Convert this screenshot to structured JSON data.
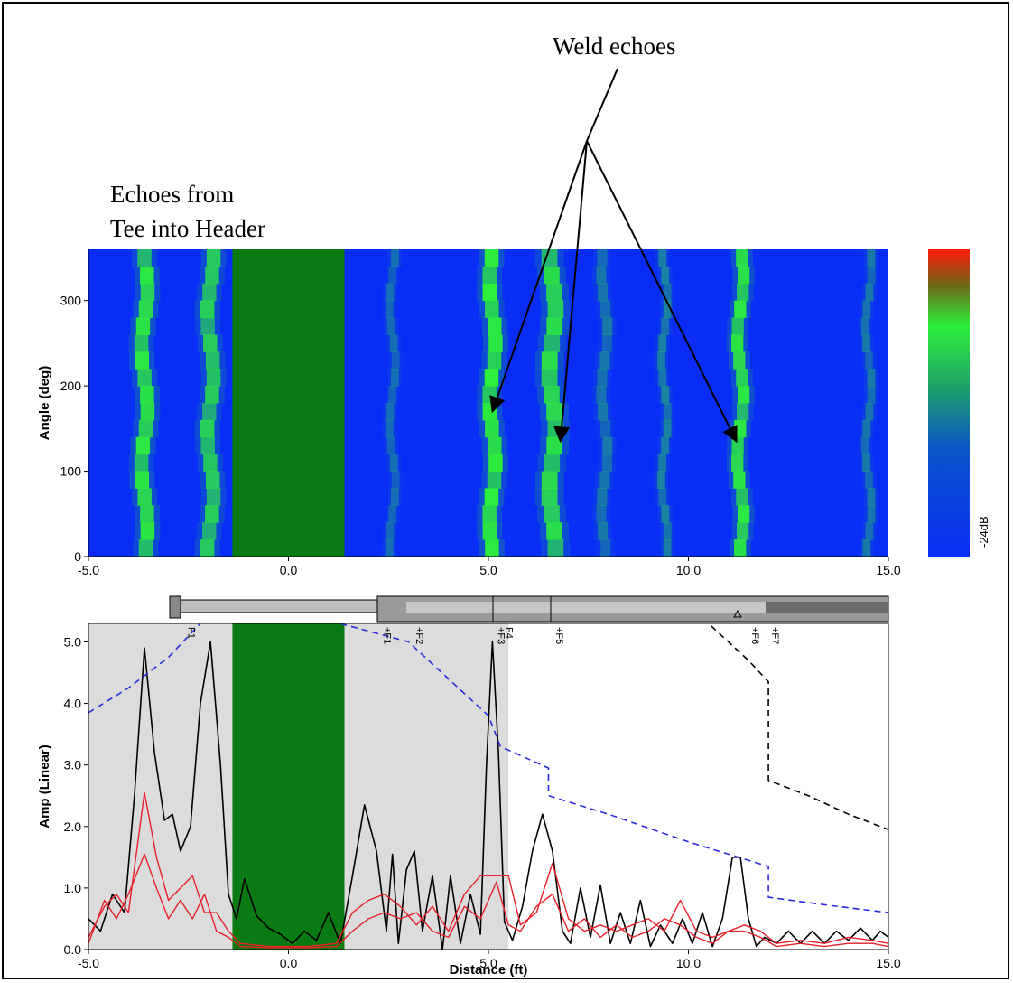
{
  "annotations": {
    "weld_echoes": "Weld echoes",
    "tee_line1": "Echoes from",
    "tee_line2": "Tee into Header"
  },
  "colors": {
    "map_background": "#0a2df5",
    "echo_green": "#2ef03a",
    "blanked_green": "#0a7a12",
    "gray_region": "#dcdcdc",
    "black_trace": "#000000",
    "red_trace": "#e8202a",
    "blue_dac": "#2a2ae0",
    "black_dac": "#000000"
  },
  "colorbar": {
    "label": "-24dB",
    "top_color": "#ff1a0a",
    "mid_color": "#2ef03a",
    "bottom_color": "#0a2df5"
  },
  "features": [
    "F1",
    "+F1",
    "+F2",
    "+F3",
    "F4",
    "+F5",
    "+F6",
    "+F7"
  ],
  "chart_data": [
    {
      "type": "heatmap",
      "ylabel": "Angle (deg)",
      "xlim": [
        -5.0,
        15.0
      ],
      "ylim": [
        0,
        360
      ],
      "xticks": [
        "-5.0",
        "0.0",
        "5.0",
        "10.0",
        "15.0"
      ],
      "yticks": [
        "0",
        "100",
        "200",
        "300"
      ],
      "blanked_region": [
        -1.4,
        1.4
      ],
      "echo_bands": [
        {
          "x": -3.6,
          "width": 0.35,
          "intensity": 0.95
        },
        {
          "x": -1.95,
          "width": 0.35,
          "intensity": 0.8
        },
        {
          "x": 5.1,
          "width": 0.35,
          "intensity": 1.0
        },
        {
          "x": 6.6,
          "width": 0.4,
          "intensity": 0.9
        },
        {
          "x": 11.3,
          "width": 0.3,
          "intensity": 0.95
        },
        {
          "x": 2.6,
          "width": 0.2,
          "intensity": 0.3
        },
        {
          "x": 7.9,
          "width": 0.25,
          "intensity": 0.35
        },
        {
          "x": 9.4,
          "width": 0.2,
          "intensity": 0.4
        },
        {
          "x": 14.5,
          "width": 0.2,
          "intensity": 0.35
        }
      ],
      "arrow_targets": [
        {
          "x": 5.1,
          "y": 170
        },
        {
          "x": 6.8,
          "y": 135
        },
        {
          "x": 11.2,
          "y": 135
        }
      ]
    },
    {
      "type": "line",
      "xlabel": "Distance (ft)",
      "ylabel": "Amp (Linear)",
      "xlim": [
        -5.0,
        15.0
      ],
      "ylim": [
        0,
        5.3
      ],
      "xticks": [
        "-5.0",
        "0.0",
        "5.0",
        "10.0",
        "15.0"
      ],
      "yticks": [
        "0.0",
        "1.0",
        "2.0",
        "3.0",
        "4.0",
        "5.0"
      ],
      "gray_regions": [
        [
          -5.0,
          -1.4
        ],
        [
          1.4,
          5.5
        ]
      ],
      "blanked_region": [
        -1.4,
        1.4
      ],
      "series": [
        {
          "style": "black-solid",
          "x": [
            -5.0,
            -4.7,
            -4.4,
            -4.1,
            -3.85,
            -3.6,
            -3.35,
            -3.1,
            -2.9,
            -2.7,
            -2.45,
            -2.2,
            -1.95,
            -1.7,
            -1.5,
            -1.3,
            -1.1,
            -0.8,
            -0.5,
            -0.2,
            0.1,
            0.4,
            0.7,
            1.0,
            1.3,
            1.6,
            1.9,
            2.2,
            2.45,
            2.6,
            2.75,
            2.95,
            3.15,
            3.35,
            3.6,
            3.85,
            4.05,
            4.3,
            4.55,
            4.8,
            4.95,
            5.1,
            5.25,
            5.4,
            5.6,
            5.85,
            6.1,
            6.35,
            6.6,
            6.85,
            7.05,
            7.3,
            7.55,
            7.8,
            8.05,
            8.3,
            8.55,
            8.8,
            9.05,
            9.3,
            9.6,
            9.85,
            10.1,
            10.35,
            10.6,
            10.85,
            11.1,
            11.3,
            11.5,
            11.7,
            11.9,
            12.2,
            12.5,
            12.8,
            13.1,
            13.4,
            13.7,
            14.0,
            14.3,
            14.6,
            14.8,
            15.0
          ],
          "y": [
            0.5,
            0.3,
            0.9,
            0.6,
            2.5,
            4.9,
            3.2,
            2.1,
            2.2,
            1.6,
            2.0,
            4.0,
            5.0,
            3.0,
            0.9,
            0.5,
            1.15,
            0.55,
            0.35,
            0.25,
            0.1,
            0.3,
            0.15,
            0.6,
            0.1,
            1.2,
            2.35,
            1.6,
            0.3,
            1.55,
            0.1,
            1.3,
            1.6,
            0.3,
            1.2,
            0.0,
            1.2,
            0.1,
            0.9,
            0.25,
            3.0,
            5.0,
            3.2,
            0.45,
            0.15,
            0.7,
            1.6,
            2.2,
            1.6,
            0.3,
            0.1,
            1.0,
            0.2,
            1.05,
            0.1,
            0.6,
            0.1,
            0.8,
            0.05,
            0.4,
            0.1,
            0.5,
            0.1,
            0.6,
            0.05,
            0.5,
            1.5,
            1.5,
            0.5,
            0.05,
            0.2,
            0.1,
            0.3,
            0.1,
            0.3,
            0.1,
            0.3,
            0.15,
            0.35,
            0.15,
            0.3,
            0.2
          ]
        },
        {
          "style": "red-solid",
          "x": [
            -5.0,
            -4.6,
            -4.3,
            -4.0,
            -3.6,
            -3.3,
            -3.0,
            -2.7,
            -2.4,
            -2.1,
            -1.8,
            -1.5,
            -1.2,
            -0.5,
            0.5,
            1.2,
            1.6,
            2.0,
            2.4,
            2.8,
            3.2,
            3.6,
            4.0,
            4.4,
            4.8,
            5.2,
            5.5,
            5.8,
            6.2,
            6.6,
            7.0,
            7.4,
            7.8,
            8.2,
            8.6,
            9.0,
            9.4,
            9.8,
            10.2,
            10.6,
            11.0,
            11.4,
            11.8,
            12.2,
            12.8,
            13.4,
            14.0,
            14.6,
            15.0
          ],
          "y": [
            0.2,
            0.7,
            0.9,
            0.6,
            2.55,
            1.5,
            0.8,
            1.0,
            1.2,
            0.6,
            0.6,
            0.3,
            0.1,
            0.05,
            0.05,
            0.1,
            0.6,
            0.8,
            0.9,
            0.7,
            0.4,
            0.7,
            0.3,
            0.9,
            1.2,
            1.2,
            1.2,
            0.4,
            0.6,
            1.4,
            0.5,
            0.3,
            0.4,
            0.3,
            0.4,
            0.5,
            0.3,
            0.8,
            0.3,
            0.2,
            0.3,
            0.4,
            0.3,
            0.1,
            0.15,
            0.1,
            0.2,
            0.15,
            0.1
          ]
        },
        {
          "style": "red-solid",
          "x": [
            -5.0,
            -4.6,
            -4.3,
            -4.0,
            -3.6,
            -3.3,
            -3.0,
            -2.7,
            -2.4,
            -2.1,
            -1.8,
            -1.5,
            -1.2,
            -0.5,
            0.5,
            1.2,
            1.6,
            2.0,
            2.4,
            2.8,
            3.2,
            3.6,
            4.0,
            4.4,
            4.8,
            5.2,
            5.5,
            5.8,
            6.2,
            6.6,
            7.0,
            7.4,
            7.8,
            8.2,
            8.6,
            9.0,
            9.4,
            9.8,
            10.2,
            10.6,
            11.0,
            11.4,
            11.8,
            12.2,
            12.8,
            13.4,
            14.0,
            14.6,
            15.0
          ],
          "y": [
            0.1,
            0.8,
            0.5,
            0.9,
            1.55,
            1.0,
            0.5,
            0.8,
            0.5,
            0.9,
            0.3,
            0.2,
            0.05,
            0.03,
            0.03,
            0.05,
            0.3,
            0.5,
            0.6,
            0.5,
            0.6,
            0.3,
            0.2,
            0.7,
            0.5,
            1.1,
            0.4,
            0.3,
            0.7,
            0.9,
            0.3,
            0.5,
            0.2,
            0.4,
            0.2,
            0.3,
            0.5,
            0.4,
            0.2,
            0.1,
            0.3,
            0.3,
            0.2,
            0.05,
            0.1,
            0.05,
            0.1,
            0.1,
            0.05
          ]
        },
        {
          "style": "blue-dashed",
          "x": [
            -5.0,
            -4.0,
            -3.0,
            -2.2,
            -1.6,
            3.0,
            5.0,
            5.3,
            6.5,
            6.5,
            8.0,
            10.0,
            12.0,
            12.0,
            13.5,
            15.0
          ],
          "y": [
            3.85,
            4.25,
            4.75,
            5.3,
            5.8,
            5.0,
            3.8,
            3.3,
            2.95,
            2.5,
            2.2,
            1.75,
            1.35,
            0.85,
            0.72,
            0.6
          ]
        },
        {
          "style": "black-dashed",
          "x": [
            9.5,
            10.5,
            11.5,
            12.0,
            12.0,
            13.0,
            14.0,
            15.0
          ],
          "y": [
            5.8,
            5.3,
            4.7,
            4.35,
            2.75,
            2.5,
            2.2,
            1.95
          ]
        }
      ]
    }
  ]
}
